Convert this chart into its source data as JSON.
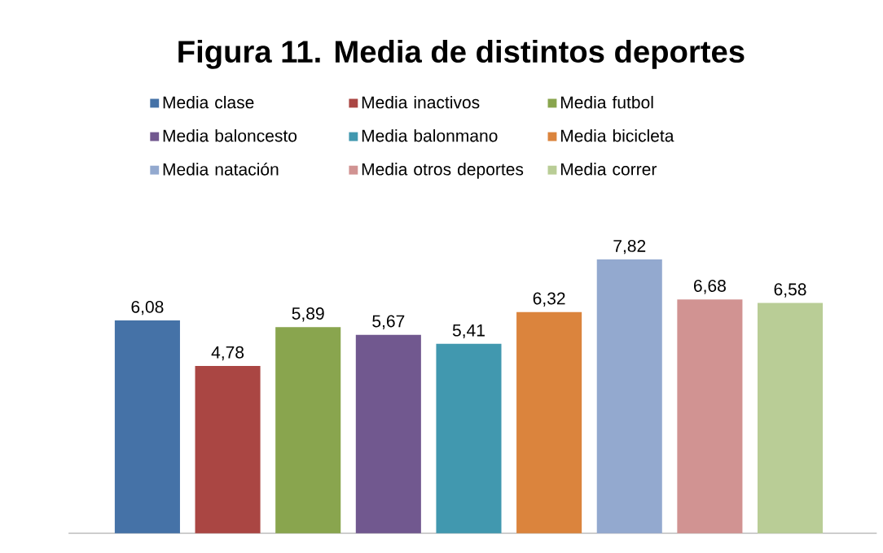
{
  "chart_data": {
    "type": "bar",
    "title": "Figura 11. Media de distintos deportes",
    "categories": [
      null
    ],
    "series": [
      {
        "name": "Media clase",
        "color": "#4572a7",
        "values": [
          6.08
        ],
        "value_labels": [
          "6,08"
        ]
      },
      {
        "name": "Media inactivos",
        "color": "#aa4643",
        "values": [
          4.78
        ],
        "value_labels": [
          "4,78"
        ]
      },
      {
        "name": "Media futbol",
        "color": "#89a54e",
        "values": [
          5.89
        ],
        "value_labels": [
          "5,89"
        ]
      },
      {
        "name": "Media baloncesto",
        "color": "#71588f",
        "values": [
          5.67
        ],
        "value_labels": [
          "5,67"
        ]
      },
      {
        "name": "Media balonmano",
        "color": "#4198af",
        "values": [
          5.41
        ],
        "value_labels": [
          "5,41"
        ]
      },
      {
        "name": "Media bicicleta",
        "color": "#db843d",
        "values": [
          6.32
        ],
        "value_labels": [
          "6,32"
        ]
      },
      {
        "name": "Media natación",
        "color": "#93a9cf",
        "values": [
          7.82
        ],
        "value_labels": [
          "7,82"
        ]
      },
      {
        "name": "Media otros deportes",
        "color": "#d19392",
        "values": [
          6.68
        ],
        "value_labels": [
          "6,68"
        ]
      },
      {
        "name": "Media correr",
        "color": "#b9cd96",
        "values": [
          6.58
        ],
        "value_labels": [
          "6,58"
        ]
      }
    ],
    "legend": "top"
  }
}
